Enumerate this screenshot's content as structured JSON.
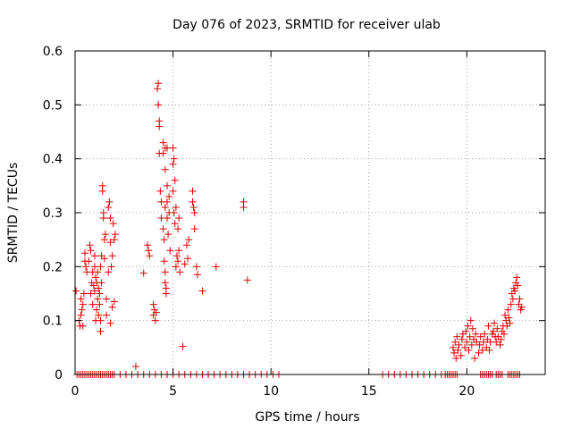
{
  "chart_data": {
    "type": "scatter",
    "title": "Day 076 of 2023, SRMTID for receiver ulab",
    "xlabel": "GPS time / hours",
    "ylabel": "SRMTID / TECUs",
    "xlim": [
      0,
      24
    ],
    "ylim": [
      0,
      0.6
    ],
    "grid": true,
    "marker": "+",
    "colors": {
      "points": "#e00000",
      "grid": "#a0a0a0",
      "axis": "#000000"
    },
    "x_ticks": [
      {
        "value": 0,
        "label": "0"
      },
      {
        "value": 5,
        "label": "5"
      },
      {
        "value": 10,
        "label": "10"
      },
      {
        "value": 15,
        "label": "15"
      },
      {
        "value": 20,
        "label": "20"
      }
    ],
    "y_ticks": [
      {
        "value": 0,
        "label": "0"
      },
      {
        "value": 0.1,
        "label": "0.1"
      },
      {
        "value": 0.2,
        "label": "0.2"
      },
      {
        "value": 0.3,
        "label": "0.3"
      },
      {
        "value": 0.4,
        "label": "0.4"
      },
      {
        "value": 0.5,
        "label": "0.5"
      },
      {
        "value": 0.6,
        "label": "0.6"
      }
    ],
    "series": [
      {
        "name": "SRMTID",
        "points": [
          [
            0.05,
            0.155
          ],
          [
            0.2,
            0.1
          ],
          [
            0.25,
            0.09
          ],
          [
            0.3,
            0.14
          ],
          [
            0.3,
            0.11
          ],
          [
            0.35,
            0.12
          ],
          [
            0.4,
            0.09
          ],
          [
            0.4,
            0.13
          ],
          [
            0.45,
            0.15
          ],
          [
            0.5,
            0.21
          ],
          [
            0.5,
            0.225
          ],
          [
            0.55,
            0.2
          ],
          [
            0.6,
            0.19
          ],
          [
            0.7,
            0.21
          ],
          [
            0.75,
            0.24
          ],
          [
            0.8,
            0.23
          ],
          [
            0.8,
            0.15
          ],
          [
            0.85,
            0.17
          ],
          [
            0.9,
            0.19
          ],
          [
            0.9,
            0.13
          ],
          [
            0.95,
            0.165
          ],
          [
            1.0,
            0.22
          ],
          [
            1.0,
            0.2
          ],
          [
            1.0,
            0.155
          ],
          [
            1.05,
            0.18
          ],
          [
            1.05,
            0.1
          ],
          [
            1.1,
            0.17
          ],
          [
            1.1,
            0.12
          ],
          [
            1.15,
            0.19
          ],
          [
            1.15,
            0.14
          ],
          [
            1.2,
            0.16
          ],
          [
            1.2,
            0.11
          ],
          [
            1.25,
            0.15
          ],
          [
            1.25,
            0.13
          ],
          [
            1.3,
            0.08
          ],
          [
            1.3,
            0.1
          ],
          [
            1.3,
            0.2
          ],
          [
            1.35,
            0.17
          ],
          [
            1.35,
            0.22
          ],
          [
            1.4,
            0.35
          ],
          [
            1.4,
            0.34
          ],
          [
            1.45,
            0.3
          ],
          [
            1.45,
            0.29
          ],
          [
            1.5,
            0.25
          ],
          [
            1.5,
            0.215
          ],
          [
            1.55,
            0.26
          ],
          [
            1.6,
            0.14
          ],
          [
            1.6,
            0.11
          ],
          [
            1.7,
            0.31
          ],
          [
            1.7,
            0.19
          ],
          [
            1.75,
            0.32
          ],
          [
            1.8,
            0.245
          ],
          [
            1.8,
            0.29
          ],
          [
            1.8,
            0.095
          ],
          [
            1.85,
            0.2
          ],
          [
            1.9,
            0.22
          ],
          [
            1.9,
            0.125
          ],
          [
            1.95,
            0.28
          ],
          [
            2.0,
            0.25
          ],
          [
            2.0,
            0.135
          ],
          [
            2.05,
            0.26
          ],
          [
            3.1,
            0.015
          ],
          [
            3.5,
            0.188
          ],
          [
            3.7,
            0.24
          ],
          [
            3.75,
            0.23
          ],
          [
            3.8,
            0.22
          ],
          [
            4.0,
            0.13
          ],
          [
            4.0,
            0.11
          ],
          [
            4.05,
            0.12
          ],
          [
            4.1,
            0.1
          ],
          [
            4.15,
            0.115
          ],
          [
            4.2,
            0.53
          ],
          [
            4.25,
            0.54
          ],
          [
            4.25,
            0.5
          ],
          [
            4.3,
            0.47
          ],
          [
            4.3,
            0.46
          ],
          [
            4.3,
            0.41
          ],
          [
            4.35,
            0.34
          ],
          [
            4.4,
            0.32
          ],
          [
            4.4,
            0.29
          ],
          [
            4.5,
            0.43
          ],
          [
            4.5,
            0.41
          ],
          [
            4.5,
            0.27
          ],
          [
            4.55,
            0.25
          ],
          [
            4.55,
            0.21
          ],
          [
            4.6,
            0.42
          ],
          [
            4.6,
            0.38
          ],
          [
            4.6,
            0.31
          ],
          [
            4.6,
            0.19
          ],
          [
            4.6,
            0.17
          ],
          [
            4.65,
            0.16
          ],
          [
            4.65,
            0.15
          ],
          [
            4.7,
            0.42
          ],
          [
            4.7,
            0.35
          ],
          [
            4.7,
            0.32
          ],
          [
            4.7,
            0.29
          ],
          [
            4.75,
            0.26
          ],
          [
            4.8,
            0.33
          ],
          [
            4.8,
            0.3
          ],
          [
            4.85,
            0.23
          ],
          [
            5.0,
            0.42
          ],
          [
            5.0,
            0.39
          ],
          [
            5.0,
            0.34
          ],
          [
            5.05,
            0.4
          ],
          [
            5.05,
            0.3
          ],
          [
            5.1,
            0.36
          ],
          [
            5.1,
            0.28
          ],
          [
            5.15,
            0.31
          ],
          [
            5.15,
            0.2
          ],
          [
            5.2,
            0.22
          ],
          [
            5.25,
            0.27
          ],
          [
            5.25,
            0.21
          ],
          [
            5.3,
            0.29
          ],
          [
            5.3,
            0.23
          ],
          [
            5.35,
            0.19
          ],
          [
            5.5,
            0.052
          ],
          [
            5.6,
            0.205
          ],
          [
            5.7,
            0.24
          ],
          [
            5.75,
            0.215
          ],
          [
            5.8,
            0.25
          ],
          [
            6.0,
            0.34
          ],
          [
            6.0,
            0.32
          ],
          [
            6.05,
            0.31
          ],
          [
            6.1,
            0.3
          ],
          [
            6.1,
            0.27
          ],
          [
            6.2,
            0.2
          ],
          [
            6.25,
            0.185
          ],
          [
            6.5,
            0.155
          ],
          [
            7.2,
            0.2
          ],
          [
            8.6,
            0.32
          ],
          [
            8.6,
            0.31
          ],
          [
            8.8,
            0.175
          ],
          [
            19.3,
            0.05
          ],
          [
            19.35,
            0.04
          ],
          [
            19.4,
            0.06
          ],
          [
            19.45,
            0.03
          ],
          [
            19.5,
            0.07
          ],
          [
            19.55,
            0.045
          ],
          [
            19.6,
            0.055
          ],
          [
            19.7,
            0.035
          ],
          [
            19.75,
            0.065
          ],
          [
            19.8,
            0.075
          ],
          [
            19.9,
            0.05
          ],
          [
            19.95,
            0.08
          ],
          [
            20.0,
            0.06
          ],
          [
            20.05,
            0.09
          ],
          [
            20.1,
            0.045
          ],
          [
            20.15,
            0.07
          ],
          [
            20.2,
            0.1
          ],
          [
            20.25,
            0.055
          ],
          [
            20.3,
            0.085
          ],
          [
            20.35,
            0.065
          ],
          [
            20.4,
            0.03
          ],
          [
            20.45,
            0.075
          ],
          [
            20.5,
            0.06
          ],
          [
            20.6,
            0.04
          ],
          [
            20.65,
            0.055
          ],
          [
            20.7,
            0.07
          ],
          [
            20.8,
            0.045
          ],
          [
            20.85,
            0.06
          ],
          [
            20.9,
            0.075
          ],
          [
            21.0,
            0.05
          ],
          [
            21.05,
            0.065
          ],
          [
            21.1,
            0.09
          ],
          [
            21.15,
            0.045
          ],
          [
            21.2,
            0.06
          ],
          [
            21.3,
            0.075
          ],
          [
            21.35,
            0.08
          ],
          [
            21.4,
            0.095
          ],
          [
            21.45,
            0.07
          ],
          [
            21.5,
            0.06
          ],
          [
            21.55,
            0.085
          ],
          [
            21.6,
            0.07
          ],
          [
            21.7,
            0.055
          ],
          [
            21.75,
            0.065
          ],
          [
            21.8,
            0.08
          ],
          [
            21.85,
            0.09
          ],
          [
            21.9,
            0.075
          ],
          [
            21.95,
            0.11
          ],
          [
            22.0,
            0.1
          ],
          [
            22.05,
            0.09
          ],
          [
            22.1,
            0.12
          ],
          [
            22.15,
            0.105
          ],
          [
            22.2,
            0.095
          ],
          [
            22.25,
            0.13
          ],
          [
            22.3,
            0.15
          ],
          [
            22.35,
            0.14
          ],
          [
            22.4,
            0.16
          ],
          [
            22.45,
            0.155
          ],
          [
            22.5,
            0.17
          ],
          [
            22.55,
            0.18
          ],
          [
            22.6,
            0.165
          ],
          [
            22.65,
            0.13
          ],
          [
            22.7,
            0.14
          ],
          [
            22.75,
            0.12
          ],
          [
            22.8,
            0.125
          ],
          [
            0.1,
            0
          ],
          [
            0.2,
            0
          ],
          [
            0.3,
            0
          ],
          [
            0.4,
            0
          ],
          [
            0.5,
            0
          ],
          [
            0.6,
            0
          ],
          [
            0.7,
            0
          ],
          [
            0.8,
            0
          ],
          [
            0.9,
            0
          ],
          [
            1.0,
            0
          ],
          [
            1.1,
            0
          ],
          [
            1.2,
            0
          ],
          [
            1.3,
            0
          ],
          [
            1.4,
            0
          ],
          [
            1.5,
            0
          ],
          [
            1.6,
            0
          ],
          [
            1.7,
            0
          ],
          [
            1.8,
            0
          ],
          [
            1.9,
            0
          ],
          [
            2.0,
            0
          ],
          [
            2.3,
            0
          ],
          [
            2.6,
            0
          ],
          [
            2.9,
            0
          ],
          [
            3.2,
            0
          ],
          [
            3.5,
            0
          ],
          [
            3.8,
            0
          ],
          [
            4.1,
            0
          ],
          [
            4.4,
            0
          ],
          [
            4.7,
            0
          ],
          [
            5.0,
            0
          ],
          [
            5.3,
            0
          ],
          [
            5.6,
            0
          ],
          [
            5.9,
            0
          ],
          [
            6.2,
            0
          ],
          [
            6.5,
            0
          ],
          [
            6.8,
            0
          ],
          [
            7.1,
            0
          ],
          [
            7.4,
            0
          ],
          [
            7.7,
            0
          ],
          [
            8.0,
            0
          ],
          [
            8.3,
            0
          ],
          [
            8.6,
            0
          ],
          [
            8.9,
            0
          ],
          [
            9.2,
            0
          ],
          [
            9.5,
            0
          ],
          [
            9.8,
            0
          ],
          [
            10.1,
            0
          ],
          [
            10.4,
            0
          ],
          [
            15.7,
            0
          ],
          [
            16.0,
            0
          ],
          [
            16.3,
            0
          ],
          [
            16.6,
            0
          ],
          [
            16.9,
            0
          ],
          [
            17.2,
            0
          ],
          [
            17.5,
            0
          ],
          [
            17.8,
            0
          ],
          [
            18.1,
            0
          ],
          [
            18.4,
            0
          ],
          [
            18.7,
            0
          ],
          [
            18.9,
            0
          ],
          [
            19.0,
            0
          ],
          [
            19.1,
            0
          ],
          [
            19.2,
            0
          ],
          [
            19.3,
            0
          ],
          [
            19.4,
            0
          ],
          [
            19.5,
            0
          ],
          [
            20.7,
            0
          ],
          [
            20.8,
            0
          ],
          [
            20.9,
            0
          ],
          [
            21.0,
            0
          ],
          [
            21.1,
            0
          ],
          [
            21.2,
            0
          ],
          [
            21.3,
            0
          ],
          [
            21.5,
            0
          ],
          [
            21.6,
            0
          ],
          [
            21.7,
            0
          ],
          [
            21.8,
            0
          ],
          [
            22.1,
            0
          ],
          [
            22.2,
            0
          ],
          [
            22.3,
            0
          ],
          [
            22.4,
            0
          ],
          [
            22.5,
            0
          ],
          [
            22.6,
            0
          ],
          [
            22.7,
            0
          ]
        ]
      }
    ]
  }
}
